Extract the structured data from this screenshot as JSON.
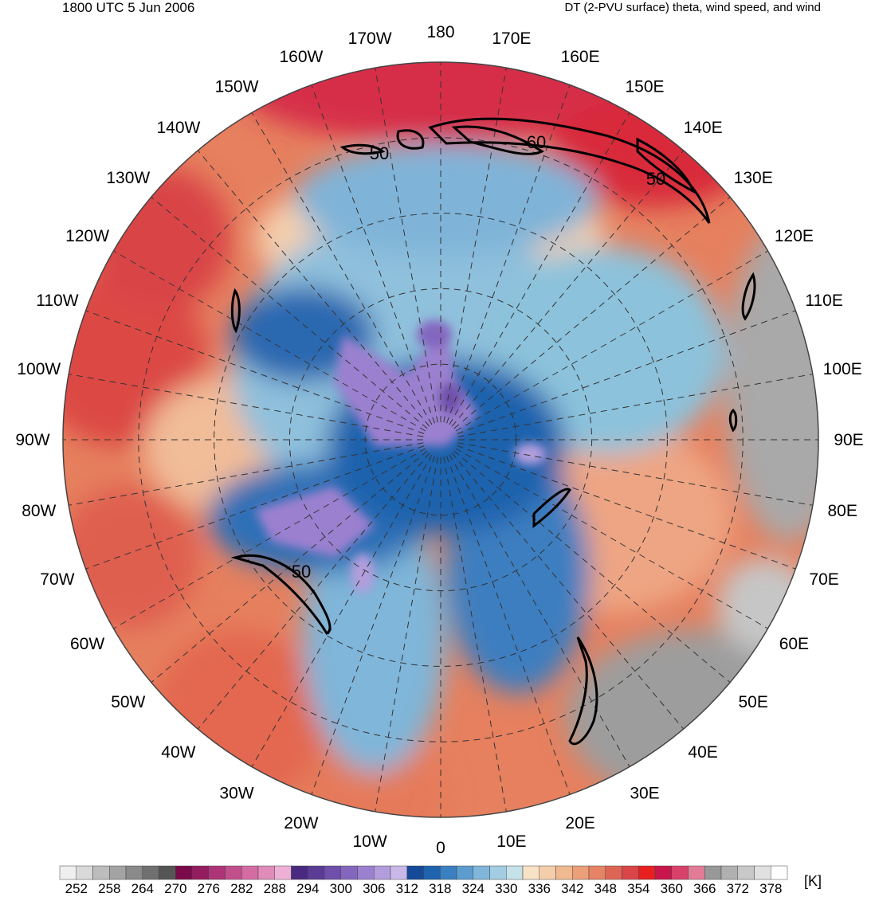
{
  "header": {
    "time_label": "1800 UTC 5 Jun 2006",
    "product_label": "DT (2-PVU surface) theta, wind speed, and wind"
  },
  "map": {
    "projection": "north-polar-stereographic",
    "longitude_labels": [
      {
        "lon": 180,
        "label": "180"
      },
      {
        "lon": -170,
        "label": "170W"
      },
      {
        "lon": -160,
        "label": "160W"
      },
      {
        "lon": -150,
        "label": "150W"
      },
      {
        "lon": -140,
        "label": "140W"
      },
      {
        "lon": -130,
        "label": "130W"
      },
      {
        "lon": -120,
        "label": "120W"
      },
      {
        "lon": -110,
        "label": "110W"
      },
      {
        "lon": -100,
        "label": "100W"
      },
      {
        "lon": -90,
        "label": "90W"
      },
      {
        "lon": -80,
        "label": "80W"
      },
      {
        "lon": -70,
        "label": "70W"
      },
      {
        "lon": -60,
        "label": "60W"
      },
      {
        "lon": -50,
        "label": "50W"
      },
      {
        "lon": -40,
        "label": "40W"
      },
      {
        "lon": -30,
        "label": "30W"
      },
      {
        "lon": -20,
        "label": "20W"
      },
      {
        "lon": -10,
        "label": "10W"
      },
      {
        "lon": 0,
        "label": "0"
      },
      {
        "lon": 10,
        "label": "10E"
      },
      {
        "lon": 20,
        "label": "20E"
      },
      {
        "lon": 30,
        "label": "30E"
      },
      {
        "lon": 40,
        "label": "40E"
      },
      {
        "lon": 50,
        "label": "50E"
      },
      {
        "lon": 60,
        "label": "60E"
      },
      {
        "lon": 70,
        "label": "70E"
      },
      {
        "lon": 80,
        "label": "80E"
      },
      {
        "lon": 90,
        "label": "90E"
      },
      {
        "lon": 100,
        "label": "100E"
      },
      {
        "lon": 110,
        "label": "110E"
      },
      {
        "lon": 120,
        "label": "120E"
      },
      {
        "lon": 130,
        "label": "130E"
      },
      {
        "lon": 140,
        "label": "140E"
      },
      {
        "lon": 150,
        "label": "150E"
      },
      {
        "lon": 160,
        "label": "160E"
      },
      {
        "lon": 170,
        "label": "170E"
      }
    ],
    "wind_speed_contour_labels": [
      "50",
      "60",
      "50",
      "50"
    ]
  },
  "colorbar": {
    "unit_label": "[K]",
    "tick_labels": [
      "252",
      "258",
      "264",
      "270",
      "276",
      "282",
      "288",
      "294",
      "300",
      "306",
      "312",
      "318",
      "324",
      "330",
      "336",
      "342",
      "348",
      "354",
      "360",
      "366",
      "372",
      "378"
    ],
    "colors": [
      "#efefef",
      "#d9d9d9",
      "#bdbdbd",
      "#a3a3a3",
      "#8a8a8a",
      "#707070",
      "#555555",
      "#7a0a4a",
      "#941d5f",
      "#ad3476",
      "#c24f8c",
      "#d46ca3",
      "#e08cbb",
      "#eeb0d6",
      "#4a2a80",
      "#5c3b96",
      "#6f4fac",
      "#8466bf",
      "#9b80cf",
      "#b39ddd",
      "#c9b8e8",
      "#154a98",
      "#1f62ad",
      "#3a7fc0",
      "#5c9ccf",
      "#7fb6d9",
      "#a3cde2",
      "#c5e2ea",
      "#f7e2c6",
      "#f4ceaa",
      "#f1b98f",
      "#ec9f78",
      "#e68364",
      "#de6554",
      "#d94548",
      "#e82020",
      "#c9174b",
      "#d8416a",
      "#e27b96",
      "#989898",
      "#b0b0b0",
      "#c8c8c8",
      "#e0e0e0",
      "#ffffff"
    ]
  }
}
